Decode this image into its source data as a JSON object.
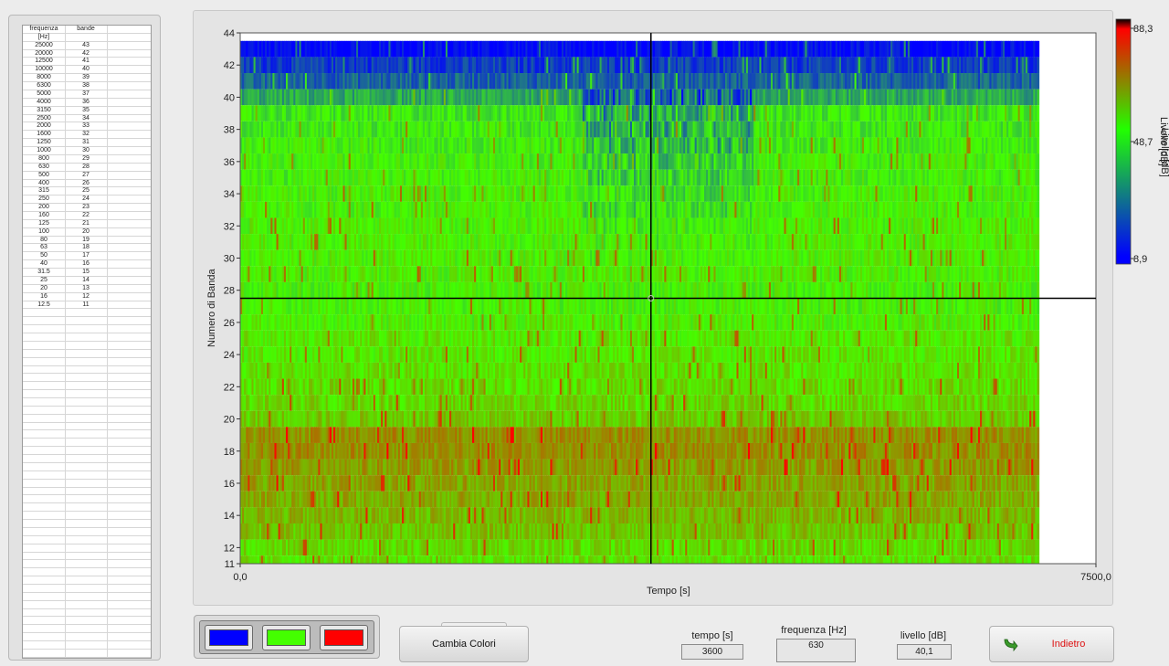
{
  "table": {
    "col1_header": "frequenza",
    "col1_unit": "[Hz]",
    "col2_header": "bande",
    "rows": [
      [
        "25000",
        "43"
      ],
      [
        "20000",
        "42"
      ],
      [
        "12500",
        "41"
      ],
      [
        "10000",
        "40"
      ],
      [
        "8000",
        "39"
      ],
      [
        "6300",
        "38"
      ],
      [
        "5000",
        "37"
      ],
      [
        "4000",
        "36"
      ],
      [
        "3150",
        "35"
      ],
      [
        "2500",
        "34"
      ],
      [
        "2000",
        "33"
      ],
      [
        "1600",
        "32"
      ],
      [
        "1250",
        "31"
      ],
      [
        "1000",
        "30"
      ],
      [
        "800",
        "29"
      ],
      [
        "630",
        "28"
      ],
      [
        "500",
        "27"
      ],
      [
        "400",
        "26"
      ],
      [
        "315",
        "25"
      ],
      [
        "250",
        "24"
      ],
      [
        "200",
        "23"
      ],
      [
        "160",
        "22"
      ],
      [
        "125",
        "21"
      ],
      [
        "100",
        "20"
      ],
      [
        "80",
        "19"
      ],
      [
        "63",
        "18"
      ],
      [
        "50",
        "17"
      ],
      [
        "40",
        "16"
      ],
      [
        "31.5",
        "15"
      ],
      [
        "25",
        "14"
      ],
      [
        "20",
        "13"
      ],
      [
        "16",
        "12"
      ],
      [
        "12.5",
        "11"
      ]
    ],
    "empty_rows": 43
  },
  "chart_data": {
    "type": "heatmap",
    "xlabel": "Tempo [s]",
    "ylabel": "Numero di Banda",
    "xlim": [
      0,
      7500
    ],
    "ylim": [
      11,
      44
    ],
    "x_tick_labels": [
      "0,0",
      "7500,0"
    ],
    "y_ticks": [
      11,
      12,
      14,
      16,
      18,
      20,
      22,
      24,
      26,
      28,
      30,
      32,
      34,
      36,
      38,
      40,
      42,
      44
    ],
    "data_x_end": 7000,
    "cursor": {
      "x": 3600,
      "y": 27.5
    },
    "colorbar": {
      "label": "Livello [dB]",
      "tick_labels": [
        "88,3",
        "48,7",
        "8,9"
      ],
      "colors": [
        "#000000",
        "#ff0000",
        "#22ff00",
        "#0000ff"
      ]
    },
    "band_levels": [
      {
        "band": 43,
        "level": 10
      },
      {
        "band": 42,
        "level": 18
      },
      {
        "band": 41,
        "level": 24
      },
      {
        "band": 40,
        "level": 35
      },
      {
        "band": 39,
        "level": 45
      },
      {
        "band": 38,
        "level": 46
      },
      {
        "band": 37,
        "level": 47
      },
      {
        "band": 36,
        "level": 48
      },
      {
        "band": 35,
        "level": 48
      },
      {
        "band": 34,
        "level": 49
      },
      {
        "band": 33,
        "level": 49
      },
      {
        "band": 32,
        "level": 50
      },
      {
        "band": 31,
        "level": 50
      },
      {
        "band": 30,
        "level": 50
      },
      {
        "band": 29,
        "level": 50
      },
      {
        "band": 28,
        "level": 49
      },
      {
        "band": 27,
        "level": 49
      },
      {
        "band": 26,
        "level": 50
      },
      {
        "band": 25,
        "level": 52
      },
      {
        "band": 24,
        "level": 52
      },
      {
        "band": 23,
        "level": 53
      },
      {
        "band": 22,
        "level": 54
      },
      {
        "band": 21,
        "level": 55
      },
      {
        "band": 20,
        "level": 57
      },
      {
        "band": 19,
        "level": 66
      },
      {
        "band": 18,
        "level": 66
      },
      {
        "band": 17,
        "level": 64
      },
      {
        "band": 16,
        "level": 63
      },
      {
        "band": 15,
        "level": 62
      },
      {
        "band": 14,
        "level": 60
      },
      {
        "band": 13,
        "level": 58
      },
      {
        "band": 12,
        "level": 55
      },
      {
        "band": 11,
        "level": 53
      }
    ]
  },
  "colors": {
    "swatch_low": "#0000ff",
    "swatch_mid": "#44ff00",
    "swatch_high": "#ff0000"
  },
  "controls": {
    "cambia_colori_label": "Cambia Colori",
    "tempo_label": "tempo [s]",
    "tempo_value": "3600",
    "frequenza_label": "frequenza [Hz]",
    "frequenza_value": "630",
    "livello_label": "livello [dB]",
    "livello_value": "40,1",
    "indietro_label": "Indietro"
  }
}
